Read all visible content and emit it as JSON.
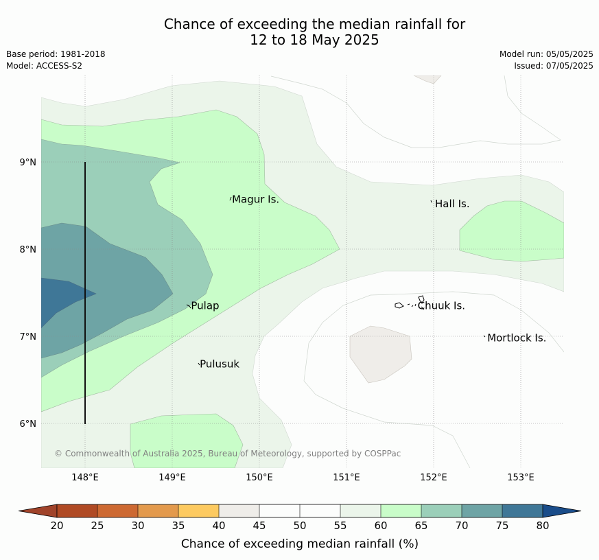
{
  "title_line1": "Chance of exceeding the median rainfall for",
  "title_line2": "12 to 18 May 2025",
  "meta_left": {
    "base_period": "Base period: 1981-2018",
    "model": "Model: ACCESS-S2"
  },
  "meta_right": {
    "model_run": "Model run: 05/05/2025",
    "issued": "Issued: 07/05/2025"
  },
  "copyright": "© Commonwealth of Australia 2025, Bureau of Meteorology, supported by COSPPac",
  "lon_labels": [
    "148°E",
    "149°E",
    "150°E",
    "151°E",
    "152°E",
    "153°E"
  ],
  "lat_labels": [
    "9°N",
    "8°N",
    "7°N",
    "6°N"
  ],
  "places": [
    {
      "name": "Magur Is.",
      "lon": 149.67,
      "lat": 8.57
    },
    {
      "name": "Hall Is.",
      "lon": 152.0,
      "lat": 8.52
    },
    {
      "name": "Pulap",
      "lon": 149.2,
      "lat": 7.35
    },
    {
      "name": "Chuuk Is.",
      "lon": 151.8,
      "lat": 7.35
    },
    {
      "name": "Mortlock Is.",
      "lon": 152.6,
      "lat": 6.98
    },
    {
      "name": "Pulusuk",
      "lon": 149.3,
      "lat": 6.68
    }
  ],
  "colorbar": {
    "label": "Chance of exceeding median rainfall (%)",
    "ticks": [
      "20",
      "25",
      "30",
      "35",
      "40",
      "45",
      "50",
      "55",
      "60",
      "65",
      "70",
      "75",
      "80"
    ],
    "colors": [
      "#b04a24",
      "#cd6932",
      "#e39a4d",
      "#fdca60",
      "#efede9",
      "#fcfdfc",
      "#fcfdfc",
      "#ebf5ea",
      "#c9fdc9",
      "#9bcfb9",
      "#6ea4a5",
      "#3f7797"
    ],
    "under_color": "#a0432a",
    "over_color": "#1a4d8a"
  },
  "map_colors": {
    "c40": "#efede9",
    "c55": "#ebf5ea",
    "c60": "#c9fdc9",
    "c65": "#9bcfb9",
    "c70": "#6ea4a5",
    "c75": "#3f7797"
  }
}
